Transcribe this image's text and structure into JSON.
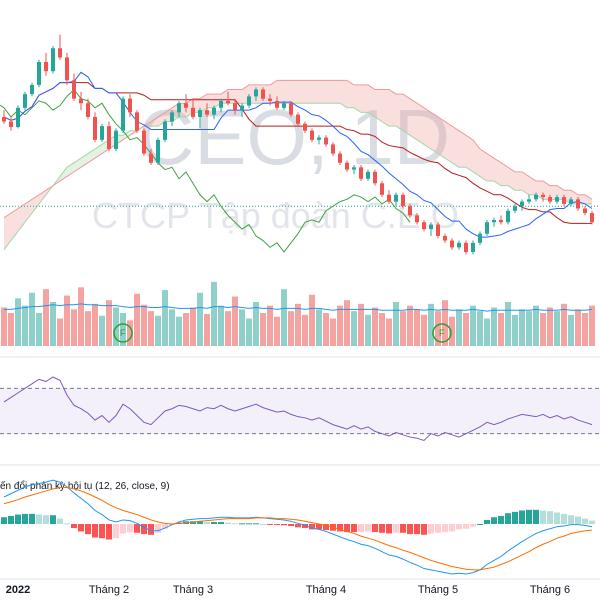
{
  "watermark": {
    "symbol": "CEO, 1D",
    "company": "CTCP Tập đoàn C.E.O"
  },
  "colors": {
    "up": "#26a69a",
    "down": "#ef5350",
    "vol_up": "#8fd0ca",
    "vol_down": "#f4a3a1",
    "tenkan": "#2962ff",
    "kijun": "#b71c1c",
    "chikou": "#43a047",
    "cloud_bull": "#a5d6a7",
    "cloud_bear": "#ef9a9a",
    "rsi": "#7e57c2",
    "macd": "#2196f3",
    "signal": "#ff6d00",
    "hist_up_strong": "#26a69a",
    "hist_up_weak": "#b2dfdb",
    "hist_down_strong": "#ff5252",
    "hist_down_weak": "#ffcdd2"
  },
  "macd_title": "ến đổi phân kỳ hội tụ (12, 26, close, 9)",
  "volume_markers": [
    "F",
    "F"
  ],
  "chart_data": {
    "type": "candlestick",
    "x_labels": [
      {
        "label": "2022",
        "index": 2,
        "bold": true
      },
      {
        "label": "Tháng 2",
        "index": 15
      },
      {
        "label": "Tháng 3",
        "index": 27
      },
      {
        "label": "Tháng 4",
        "index": 46
      },
      {
        "label": "Tháng 5",
        "index": 62
      },
      {
        "label": "Tháng 6",
        "index": 78
      }
    ],
    "candles": [
      [
        45.0,
        46.5,
        43.5,
        44.0
      ],
      [
        44.0,
        45.0,
        42.0,
        42.8
      ],
      [
        42.8,
        47.5,
        42.5,
        47.0
      ],
      [
        47.0,
        50.5,
        46.5,
        50.0
      ],
      [
        50.0,
        52.5,
        49.5,
        52.0
      ],
      [
        52.0,
        57.5,
        51.5,
        57.0
      ],
      [
        57.0,
        59.0,
        54.0,
        55.0
      ],
      [
        55.0,
        60.5,
        54.5,
        60.0
      ],
      [
        60.0,
        63.0,
        57.5,
        58.0
      ],
      [
        58.0,
        59.0,
        52.0,
        53.0
      ],
      [
        53.0,
        54.5,
        48.5,
        49.0
      ],
      [
        49.0,
        50.5,
        46.5,
        48.0
      ],
      [
        48.0,
        49.0,
        44.5,
        45.0
      ],
      [
        45.0,
        46.0,
        39.5,
        40.0
      ],
      [
        40.0,
        43.5,
        39.5,
        43.0
      ],
      [
        43.0,
        44.0,
        37.5,
        38.0
      ],
      [
        38.0,
        42.5,
        37.5,
        42.0
      ],
      [
        42.0,
        49.5,
        41.5,
        49.0
      ],
      [
        49.0,
        50.0,
        45.0,
        46.0
      ],
      [
        46.0,
        46.5,
        41.5,
        42.0
      ],
      [
        42.0,
        42.5,
        36.5,
        37.0
      ],
      [
        37.0,
        38.0,
        34.5,
        35.0
      ],
      [
        35.0,
        40.5,
        34.5,
        40.0
      ],
      [
        40.0,
        44.5,
        39.5,
        44.0
      ],
      [
        44.0,
        46.5,
        43.0,
        46.0
      ],
      [
        46.0,
        48.5,
        45.0,
        48.0
      ],
      [
        48.0,
        50.0,
        46.0,
        47.0
      ],
      [
        47.0,
        49.0,
        44.5,
        45.0
      ],
      [
        45.0,
        47.0,
        42.5,
        46.5
      ],
      [
        46.5,
        48.0,
        45.0,
        45.5
      ],
      [
        45.5,
        47.5,
        44.5,
        47.0
      ],
      [
        47.0,
        49.0,
        46.0,
        48.5
      ],
      [
        48.5,
        50.5,
        47.5,
        48.0
      ],
      [
        48.0,
        49.0,
        45.5,
        46.5
      ],
      [
        46.5,
        48.0,
        45.0,
        47.5
      ],
      [
        47.5,
        50.0,
        47.0,
        49.5
      ],
      [
        49.5,
        51.5,
        48.5,
        51.0
      ],
      [
        51.0,
        51.5,
        48.5,
        49.0
      ],
      [
        49.0,
        50.0,
        47.5,
        48.5
      ],
      [
        48.5,
        49.5,
        46.5,
        47.0
      ],
      [
        47.0,
        48.5,
        46.5,
        48.0
      ],
      [
        48.0,
        48.5,
        45.0,
        45.5
      ],
      [
        45.5,
        46.0,
        43.0,
        43.5
      ],
      [
        43.5,
        44.0,
        41.5,
        42.0
      ],
      [
        42.0,
        42.5,
        39.5,
        40.0
      ],
      [
        40.0,
        41.0,
        39.0,
        40.5
      ],
      [
        40.5,
        41.0,
        38.5,
        39.0
      ],
      [
        39.0,
        39.5,
        36.5,
        37.0
      ],
      [
        37.0,
        37.5,
        34.5,
        35.0
      ],
      [
        35.0,
        35.5,
        33.0,
        33.5
      ],
      [
        33.5,
        34.5,
        32.5,
        34.0
      ],
      [
        34.0,
        34.5,
        31.0,
        31.5
      ],
      [
        31.5,
        33.5,
        31.0,
        33.0
      ],
      [
        33.0,
        33.5,
        30.0,
        30.5
      ],
      [
        30.5,
        31.0,
        27.5,
        28.0
      ],
      [
        28.0,
        29.0,
        26.0,
        26.5
      ],
      [
        26.5,
        28.5,
        25.5,
        28.0
      ],
      [
        28.0,
        28.5,
        25.0,
        25.5
      ],
      [
        25.5,
        26.0,
        23.0,
        23.5
      ],
      [
        23.5,
        24.0,
        21.5,
        22.0
      ],
      [
        22.0,
        22.5,
        20.0,
        20.5
      ],
      [
        20.5,
        22.0,
        19.0,
        21.5
      ],
      [
        21.5,
        22.0,
        18.5,
        19.0
      ],
      [
        19.0,
        19.5,
        17.5,
        18.0
      ],
      [
        18.0,
        18.5,
        16.0,
        16.5
      ],
      [
        16.5,
        18.0,
        16.0,
        17.5
      ],
      [
        17.5,
        18.0,
        15.0,
        15.5
      ],
      [
        15.5,
        18.0,
        15.0,
        17.5
      ],
      [
        17.5,
        20.0,
        17.0,
        19.5
      ],
      [
        19.5,
        22.5,
        19.0,
        22.0
      ],
      [
        22.0,
        23.0,
        21.0,
        22.5
      ],
      [
        22.5,
        23.5,
        21.5,
        22.0
      ],
      [
        22.0,
        25.0,
        21.5,
        24.5
      ],
      [
        24.5,
        26.0,
        24.0,
        25.5
      ],
      [
        25.5,
        27.0,
        24.5,
        26.5
      ],
      [
        26.5,
        28.0,
        26.0,
        27.0
      ],
      [
        27.0,
        28.5,
        26.5,
        28.0
      ],
      [
        28.0,
        28.5,
        26.5,
        27.5
      ],
      [
        27.5,
        28.0,
        26.0,
        26.5
      ],
      [
        26.5,
        28.0,
        26.0,
        27.5
      ],
      [
        27.5,
        28.0,
        25.5,
        26.0
      ],
      [
        26.0,
        27.5,
        25.5,
        27.0
      ],
      [
        27.0,
        27.5,
        24.5,
        25.0
      ],
      [
        25.0,
        25.5,
        23.5,
        24.0
      ],
      [
        24.0,
        24.5,
        21.5,
        22.0
      ]
    ],
    "volumes": [
      42,
      36,
      52,
      44,
      58,
      36,
      62,
      48,
      30,
      55,
      40,
      64,
      38,
      46,
      33,
      50,
      42,
      36,
      28,
      57,
      45,
      38,
      33,
      61,
      40,
      32,
      36,
      42,
      58,
      35,
      70,
      44,
      38,
      54,
      40,
      30,
      48,
      36,
      44,
      32,
      62,
      38,
      46,
      34,
      56,
      40,
      36,
      30,
      44,
      50,
      38,
      46,
      34,
      42,
      36,
      30,
      48,
      38,
      44,
      40,
      34,
      46,
      38,
      50,
      32,
      40,
      36,
      44,
      38,
      30,
      42,
      36,
      48,
      34,
      40,
      38,
      44,
      36,
      42,
      38,
      46,
      34,
      40,
      36,
      44
    ],
    "volume_ma": [
      40,
      40,
      41,
      42,
      43,
      43,
      44,
      45,
      44,
      45,
      45,
      46,
      45,
      45,
      44,
      44,
      44,
      43,
      42,
      43,
      43,
      42,
      42,
      43,
      42,
      41,
      41,
      41,
      42,
      41,
      43,
      43,
      42,
      43,
      42,
      41,
      42,
      41,
      41,
      40,
      41,
      41,
      41,
      40,
      41,
      41,
      40,
      39,
      40,
      40,
      40,
      40,
      40,
      40,
      39,
      39,
      39,
      39,
      40,
      40,
      39,
      40,
      39,
      40,
      39,
      39,
      39,
      40,
      39,
      38,
      39,
      39,
      39,
      39,
      39,
      39,
      40,
      39,
      39,
      39,
      40,
      39,
      39,
      39,
      40
    ],
    "rsi": [
      58,
      62,
      66,
      70,
      74,
      78,
      76,
      80,
      77,
      64,
      55,
      52,
      48,
      42,
      46,
      40,
      46,
      56,
      52,
      46,
      40,
      38,
      44,
      50,
      52,
      55,
      54,
      52,
      50,
      53,
      52,
      55,
      52,
      50,
      52,
      54,
      56,
      53,
      51,
      49,
      50,
      47,
      45,
      44,
      42,
      44,
      41,
      38,
      36,
      34,
      37,
      34,
      36,
      32,
      30,
      28,
      31,
      29,
      27,
      26,
      24,
      30,
      28,
      31,
      29,
      27,
      30,
      33,
      36,
      40,
      38,
      40,
      43,
      45,
      47,
      46,
      45,
      47,
      44,
      46,
      43,
      45,
      42,
      40,
      38
    ],
    "rsi_bands": {
      "upper": 70,
      "lower": 30
    },
    "macd": [
      4.0,
      4.5,
      5.0,
      5.5,
      5.8,
      6.0,
      6.2,
      6.5,
      6.2,
      5.5,
      4.6,
      3.8,
      3.0,
      2.0,
      1.4,
      0.6,
      0.3,
      0.6,
      0.5,
      0.1,
      -0.5,
      -1.0,
      -1.0,
      -0.6,
      -0.1,
      0.3,
      0.6,
      0.7,
      0.8,
      0.8,
      0.9,
      1.0,
      1.0,
      0.9,
      0.9,
      0.9,
      1.0,
      0.9,
      0.8,
      0.7,
      0.6,
      0.4,
      0.1,
      -0.2,
      -0.6,
      -0.8,
      -1.1,
      -1.5,
      -1.9,
      -2.3,
      -2.6,
      -3.0,
      -3.2,
      -3.6,
      -4.1,
      -4.6,
      -4.8,
      -5.2,
      -5.7,
      -6.1,
      -6.6,
      -6.8,
      -7.0,
      -7.2,
      -7.4,
      -7.3,
      -7.4,
      -7.2,
      -6.8,
      -6.0,
      -5.4,
      -4.8,
      -4.0,
      -3.3,
      -2.6,
      -2.0,
      -1.4,
      -1.0,
      -0.7,
      -0.4,
      -0.3,
      -0.1,
      -0.1,
      -0.2,
      -0.4
    ],
    "signal": [
      3.0,
      3.3,
      3.6,
      4.0,
      4.3,
      4.6,
      4.9,
      5.2,
      5.4,
      5.4,
      5.2,
      4.9,
      4.5,
      4.0,
      3.5,
      2.9,
      2.4,
      2.0,
      1.7,
      1.4,
      1.0,
      0.6,
      0.3,
      0.1,
      0.0,
      0.1,
      0.2,
      0.3,
      0.4,
      0.5,
      0.6,
      0.7,
      0.8,
      0.8,
      0.8,
      0.8,
      0.9,
      0.9,
      0.9,
      0.8,
      0.8,
      0.7,
      0.6,
      0.4,
      0.2,
      0.0,
      -0.2,
      -0.5,
      -0.8,
      -1.1,
      -1.4,
      -1.8,
      -2.1,
      -2.4,
      -2.8,
      -3.2,
      -3.5,
      -3.9,
      -4.2,
      -4.6,
      -5.0,
      -5.4,
      -5.7,
      -6.0,
      -6.3,
      -6.5,
      -6.7,
      -6.8,
      -6.8,
      -6.6,
      -6.4,
      -6.0,
      -5.6,
      -5.1,
      -4.6,
      -4.1,
      -3.5,
      -3.0,
      -2.6,
      -2.1,
      -1.8,
      -1.4,
      -1.2,
      -1.0,
      -0.9
    ],
    "cloud": {
      "span_a": [
        16,
        18,
        20,
        22,
        24,
        26,
        28,
        30,
        32,
        34,
        35,
        36,
        37,
        38,
        39,
        40,
        41,
        41,
        42,
        42,
        43,
        43,
        43,
        44,
        44,
        45,
        45,
        46,
        46,
        47,
        47,
        48,
        48,
        48,
        48,
        48,
        48,
        48,
        48,
        48,
        48,
        48,
        48,
        48,
        48,
        48,
        48,
        48,
        48,
        47,
        47,
        46,
        46,
        45,
        44,
        43,
        43,
        42,
        41,
        40,
        39,
        38,
        37,
        36,
        35,
        34,
        34,
        33,
        32,
        31,
        31,
        30,
        30,
        29,
        29,
        28,
        28,
        27,
        27,
        27,
        27,
        26,
        26,
        26,
        26
      ],
      "span_b": [
        23,
        24,
        25,
        26,
        27,
        28,
        29,
        30,
        31,
        32,
        33,
        34,
        35,
        36,
        37,
        38,
        39,
        40,
        41,
        42,
        43,
        44,
        45,
        46,
        47,
        48,
        48,
        49,
        49,
        50,
        50,
        50,
        51,
        51,
        51,
        52,
        52,
        52,
        52,
        53,
        53,
        53,
        53,
        53,
        53,
        53,
        53,
        53,
        53,
        53,
        52,
        52,
        52,
        51,
        51,
        51,
        50,
        50,
        49,
        48,
        47,
        46,
        45,
        44,
        43,
        42,
        41,
        40,
        38,
        37,
        36,
        35,
        34,
        33,
        33,
        32,
        31,
        31,
        30,
        30,
        29,
        29,
        28,
        28,
        27
      ]
    },
    "price_line": 25.5
  }
}
